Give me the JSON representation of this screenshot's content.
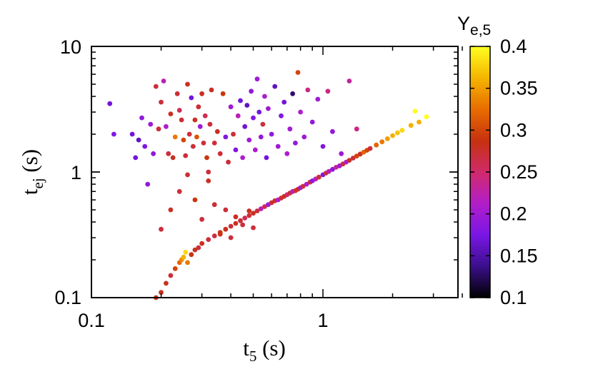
{
  "chart_data": {
    "type": "scatter",
    "title": "",
    "xlabel": {
      "main": "t",
      "sub": "5",
      "unit": " (s)"
    },
    "ylabel": {
      "main": "t",
      "sub": "ej",
      "unit": " (s)"
    },
    "xscale": "log",
    "yscale": "log",
    "xlim": [
      0.1,
      4
    ],
    "ylim": [
      0.1,
      10
    ],
    "x_tick_labels": [
      "0.1",
      "1"
    ],
    "y_tick_labels": [
      "0.1",
      "1",
      "10"
    ],
    "grid": false,
    "legend": "none",
    "colorbar": {
      "title": {
        "main": "Y",
        "sub": "e,5"
      },
      "range": [
        0.1,
        0.4
      ],
      "tick_labels": [
        "0.1",
        "0.15",
        "0.2",
        "0.25",
        "0.3",
        "0.35",
        "0.4"
      ],
      "colormap": [
        "#000000",
        "#3b0f8c",
        "#7a16e6",
        "#b21ec9",
        "#d12a6a",
        "#c7310f",
        "#e86d00",
        "#f5b500",
        "#ffff20"
      ]
    },
    "points": [
      [
        0.12,
        3.5,
        0.17
      ],
      [
        0.125,
        2.0,
        0.18
      ],
      [
        0.15,
        2.0,
        0.17
      ],
      [
        0.155,
        1.3,
        0.17
      ],
      [
        0.16,
        1.8,
        0.16
      ],
      [
        0.165,
        2.7,
        0.19
      ],
      [
        0.17,
        1.6,
        0.18
      ],
      [
        0.175,
        0.8,
        0.19
      ],
      [
        0.18,
        2.4,
        0.2
      ],
      [
        0.185,
        1.4,
        0.19
      ],
      [
        0.19,
        4.8,
        0.27
      ],
      [
        0.195,
        2.2,
        0.27
      ],
      [
        0.2,
        3.6,
        0.27
      ],
      [
        0.205,
        5.3,
        0.22
      ],
      [
        0.21,
        2.3,
        0.21
      ],
      [
        0.215,
        1.4,
        0.27
      ],
      [
        0.22,
        2.9,
        0.28
      ],
      [
        0.225,
        1.3,
        0.28
      ],
      [
        0.23,
        1.9,
        0.33
      ],
      [
        0.235,
        4.2,
        0.27
      ],
      [
        0.24,
        3.1,
        0.26
      ],
      [
        0.245,
        2.6,
        0.27
      ],
      [
        0.25,
        1.8,
        0.3
      ],
      [
        0.255,
        1.35,
        0.27
      ],
      [
        0.26,
        5.0,
        0.28
      ],
      [
        0.265,
        2.0,
        0.27
      ],
      [
        0.27,
        3.9,
        0.17
      ],
      [
        0.275,
        1.6,
        0.27
      ],
      [
        0.28,
        2.6,
        0.28
      ],
      [
        0.285,
        1.9,
        0.31
      ],
      [
        0.29,
        3.3,
        0.27
      ],
      [
        0.295,
        2.3,
        0.2
      ],
      [
        0.3,
        4.2,
        0.28
      ],
      [
        0.305,
        1.7,
        0.27
      ],
      [
        0.31,
        2.8,
        0.26
      ],
      [
        0.315,
        1.3,
        0.29
      ],
      [
        0.32,
        1.0,
        0.27
      ],
      [
        0.325,
        2.4,
        0.27
      ],
      [
        0.33,
        4.5,
        0.28
      ],
      [
        0.34,
        1.7,
        0.27
      ],
      [
        0.35,
        2.1,
        0.28
      ],
      [
        0.36,
        1.4,
        0.27
      ],
      [
        0.37,
        4.2,
        0.29
      ],
      [
        0.38,
        1.9,
        0.18
      ],
      [
        0.39,
        1.2,
        0.27
      ],
      [
        0.4,
        3.3,
        0.2
      ],
      [
        0.41,
        2.0,
        0.27
      ],
      [
        0.42,
        1.5,
        0.18
      ],
      [
        0.43,
        2.8,
        0.22
      ],
      [
        0.44,
        3.7,
        0.17
      ],
      [
        0.45,
        1.3,
        0.21
      ],
      [
        0.46,
        2.3,
        0.17
      ],
      [
        0.47,
        3.4,
        0.16
      ],
      [
        0.48,
        1.8,
        0.2
      ],
      [
        0.49,
        4.4,
        0.19
      ],
      [
        0.5,
        2.7,
        0.18
      ],
      [
        0.51,
        1.5,
        0.21
      ],
      [
        0.52,
        5.5,
        0.2
      ],
      [
        0.53,
        3.0,
        0.17
      ],
      [
        0.54,
        1.9,
        0.19
      ],
      [
        0.55,
        2.4,
        0.27
      ],
      [
        0.56,
        4.0,
        0.21
      ],
      [
        0.57,
        1.3,
        0.17
      ],
      [
        0.58,
        3.2,
        0.2
      ],
      [
        0.6,
        2.0,
        0.19
      ],
      [
        0.62,
        4.8,
        0.16
      ],
      [
        0.64,
        1.6,
        0.2
      ],
      [
        0.66,
        2.8,
        0.18
      ],
      [
        0.68,
        3.6,
        0.17
      ],
      [
        0.7,
        1.4,
        0.21
      ],
      [
        0.72,
        2.2,
        0.2
      ],
      [
        0.74,
        4.2,
        0.13
      ],
      [
        0.76,
        1.7,
        0.19
      ],
      [
        0.78,
        6.2,
        0.3
      ],
      [
        0.8,
        3.0,
        0.21
      ],
      [
        0.83,
        1.9,
        0.2
      ],
      [
        0.86,
        4.5,
        0.24
      ],
      [
        0.9,
        2.5,
        0.19
      ],
      [
        0.95,
        3.8,
        0.2
      ],
      [
        1.0,
        1.6,
        0.18
      ],
      [
        1.05,
        4.4,
        0.24
      ],
      [
        1.1,
        2.1,
        0.19
      ],
      [
        1.2,
        1.4,
        0.2
      ],
      [
        1.3,
        5.3,
        0.23
      ],
      [
        1.4,
        2.2,
        0.24
      ],
      [
        0.2,
        0.35,
        0.27
      ],
      [
        0.22,
        0.5,
        0.28
      ],
      [
        0.24,
        0.7,
        0.27
      ],
      [
        0.26,
        0.95,
        0.27
      ],
      [
        0.28,
        0.6,
        0.29
      ],
      [
        0.3,
        0.42,
        0.27
      ],
      [
        0.32,
        0.85,
        0.28
      ],
      [
        0.34,
        0.55,
        0.27
      ],
      [
        0.36,
        0.32,
        0.28
      ],
      [
        0.38,
        0.5,
        0.27
      ],
      [
        0.4,
        0.3,
        0.27
      ],
      [
        0.42,
        0.44,
        0.28
      ],
      [
        0.45,
        0.38,
        0.27
      ],
      [
        0.48,
        0.49,
        0.28
      ],
      [
        0.5,
        0.36,
        0.27
      ],
      [
        0.19,
        0.1,
        0.29
      ],
      [
        0.2,
        0.11,
        0.28
      ],
      [
        0.21,
        0.13,
        0.28
      ],
      [
        0.22,
        0.15,
        0.27
      ],
      [
        0.23,
        0.17,
        0.3
      ],
      [
        0.24,
        0.19,
        0.32
      ],
      [
        0.245,
        0.2,
        0.34
      ],
      [
        0.25,
        0.21,
        0.36
      ],
      [
        0.255,
        0.23,
        0.38
      ],
      [
        0.26,
        0.19,
        0.33
      ],
      [
        0.27,
        0.22,
        0.29
      ],
      [
        0.28,
        0.24,
        0.28
      ],
      [
        0.29,
        0.25,
        0.27
      ],
      [
        0.3,
        0.27,
        0.28
      ],
      [
        0.32,
        0.29,
        0.27
      ],
      [
        0.34,
        0.31,
        0.27
      ],
      [
        0.36,
        0.33,
        0.29
      ],
      [
        0.38,
        0.35,
        0.28
      ],
      [
        0.4,
        0.37,
        0.27
      ],
      [
        0.42,
        0.39,
        0.28
      ],
      [
        0.44,
        0.41,
        0.27
      ],
      [
        0.46,
        0.43,
        0.26
      ],
      [
        0.48,
        0.45,
        0.27
      ],
      [
        0.5,
        0.47,
        0.28
      ],
      [
        0.52,
        0.49,
        0.27
      ],
      [
        0.54,
        0.51,
        0.22
      ],
      [
        0.56,
        0.53,
        0.26
      ],
      [
        0.58,
        0.55,
        0.2
      ],
      [
        0.6,
        0.57,
        0.27
      ],
      [
        0.62,
        0.59,
        0.28
      ],
      [
        0.64,
        0.6,
        0.21
      ],
      [
        0.66,
        0.62,
        0.27
      ],
      [
        0.68,
        0.64,
        0.28
      ],
      [
        0.7,
        0.66,
        0.25
      ],
      [
        0.72,
        0.68,
        0.27
      ],
      [
        0.74,
        0.7,
        0.22
      ],
      [
        0.76,
        0.71,
        0.27
      ],
      [
        0.78,
        0.73,
        0.28
      ],
      [
        0.8,
        0.75,
        0.2
      ],
      [
        0.82,
        0.77,
        0.27
      ],
      [
        0.85,
        0.8,
        0.21
      ],
      [
        0.88,
        0.83,
        0.27
      ],
      [
        0.9,
        0.85,
        0.19
      ],
      [
        0.93,
        0.88,
        0.22
      ],
      [
        0.96,
        0.91,
        0.27
      ],
      [
        1.0,
        0.95,
        0.18
      ],
      [
        1.03,
        0.98,
        0.27
      ],
      [
        1.06,
        1.01,
        0.22
      ],
      [
        1.1,
        1.05,
        0.19
      ],
      [
        1.14,
        1.09,
        0.23
      ],
      [
        1.18,
        1.12,
        0.2
      ],
      [
        1.22,
        1.16,
        0.27
      ],
      [
        1.26,
        1.2,
        0.21
      ],
      [
        1.3,
        1.24,
        0.28
      ],
      [
        1.35,
        1.29,
        0.27
      ],
      [
        1.4,
        1.34,
        0.3
      ],
      [
        1.45,
        1.39,
        0.28
      ],
      [
        1.5,
        1.44,
        0.32
      ],
      [
        1.55,
        1.49,
        0.3
      ],
      [
        1.6,
        1.54,
        0.27
      ],
      [
        1.7,
        1.64,
        0.32
      ],
      [
        1.8,
        1.74,
        0.33
      ],
      [
        1.9,
        1.84,
        0.35
      ],
      [
        2.0,
        1.95,
        0.36
      ],
      [
        2.1,
        2.05,
        0.37
      ],
      [
        2.2,
        2.15,
        0.38
      ],
      [
        2.4,
        2.35,
        0.36
      ],
      [
        2.5,
        3.05,
        0.4
      ],
      [
        2.6,
        2.5,
        0.36
      ],
      [
        2.8,
        2.75,
        0.4
      ]
    ]
  }
}
